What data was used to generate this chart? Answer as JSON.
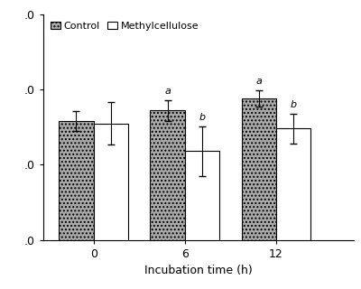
{
  "title": "",
  "xlabel": "Incubation time (h)",
  "ylabel": "",
  "x_labels": [
    "0",
    "6",
    "12"
  ],
  "control_values": [
    1.58,
    1.72,
    1.88
  ],
  "methylcellulose_values": [
    1.55,
    1.18,
    1.48
  ],
  "control_errors": [
    0.13,
    0.14,
    0.11
  ],
  "methylcellulose_errors": [
    0.28,
    0.33,
    0.2
  ],
  "ylim": [
    0.0,
    3.0
  ],
  "yticks": [
    0.0,
    1.0,
    2.0,
    3.0
  ],
  "yticklabels": [
    ".0",
    ".0",
    ".0",
    ".0"
  ],
  "bar_width": 0.38,
  "control_color": "#aaaaaa",
  "methylcellulose_color": "#ffffff",
  "control_hatch": "....",
  "methylcellulose_hatch": "",
  "legend_labels": [
    "Control",
    "Methylcellulose"
  ],
  "significance_control": [
    "",
    "a",
    "a"
  ],
  "significance_methyl": [
    "",
    "b",
    "b"
  ],
  "edgecolor": "#000000",
  "background_color": "#ffffff",
  "figwidth": 4.0,
  "figheight": 3.2
}
